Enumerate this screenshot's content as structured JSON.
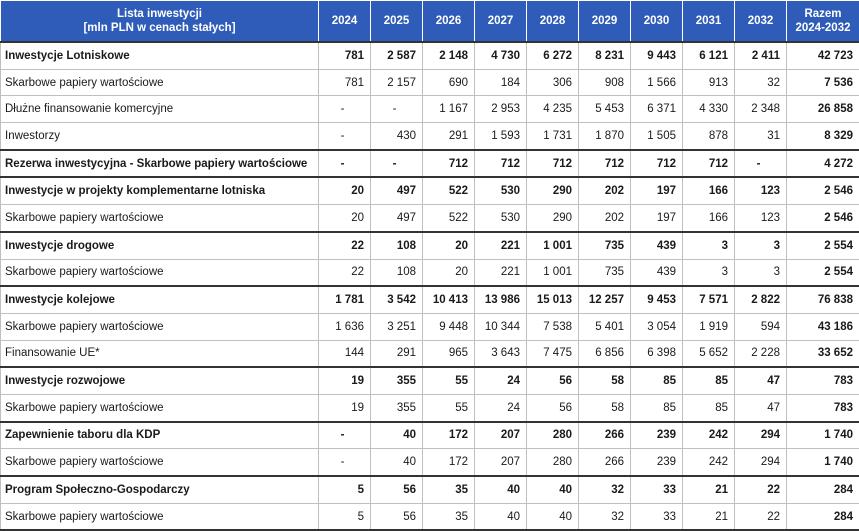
{
  "header": {
    "label_line1": "Lista inwestycji",
    "label_line2": "[mln PLN w cenach stałych]",
    "years": [
      "2024",
      "2025",
      "2026",
      "2027",
      "2028",
      "2029",
      "2030",
      "2031",
      "2032"
    ],
    "total_line1": "Razem",
    "total_line2": "2024-2032"
  },
  "rows": [
    {
      "label": "Inwestycje Lotniskowe",
      "bold": true,
      "values": [
        "781",
        "2 587",
        "2 148",
        "4 730",
        "6 272",
        "8 231",
        "9 443",
        "6 121",
        "2 411"
      ],
      "total": "42 723"
    },
    {
      "label": "Skarbowe papiery wartościowe",
      "bold": false,
      "values": [
        "781",
        "2 157",
        "690",
        "184",
        "306",
        "908",
        "1 566",
        "913",
        "32"
      ],
      "total": "7 536"
    },
    {
      "label": "Dłużne finansowanie komercyjne",
      "bold": false,
      "values": [
        "-",
        "-",
        "1 167",
        "2 953",
        "4 235",
        "5 453",
        "6 371",
        "4 330",
        "2 348"
      ],
      "total": "26 858"
    },
    {
      "label": "Inwestorzy",
      "bold": false,
      "values": [
        "-",
        "430",
        "291",
        "1 593",
        "1 731",
        "1 870",
        "1 505",
        "878",
        "31"
      ],
      "total": "8 329"
    },
    {
      "label": "Rezerwa inwestycyjna - Skarbowe papiery wartościowe",
      "bold": true,
      "values": [
        "-",
        "-",
        "712",
        "712",
        "712",
        "712",
        "712",
        "712",
        "-"
      ],
      "total": "4 272"
    },
    {
      "label": "Inwestycje w projekty komplementarne lotniska",
      "bold": true,
      "values": [
        "20",
        "497",
        "522",
        "530",
        "290",
        "202",
        "197",
        "166",
        "123"
      ],
      "total": "2 546"
    },
    {
      "label": "Skarbowe papiery wartościowe",
      "bold": false,
      "values": [
        "20",
        "497",
        "522",
        "530",
        "290",
        "202",
        "197",
        "166",
        "123"
      ],
      "total": "2 546"
    },
    {
      "label": "Inwestycje drogowe",
      "bold": true,
      "values": [
        "22",
        "108",
        "20",
        "221",
        "1 001",
        "735",
        "439",
        "3",
        "3"
      ],
      "total": "2 554"
    },
    {
      "label": "Skarbowe papiery wartościowe",
      "bold": false,
      "values": [
        "22",
        "108",
        "20",
        "221",
        "1 001",
        "735",
        "439",
        "3",
        "3"
      ],
      "total": "2 554"
    },
    {
      "label": "Inwestycje kolejowe",
      "bold": true,
      "values": [
        "1 781",
        "3 542",
        "10 413",
        "13 986",
        "15 013",
        "12 257",
        "9 453",
        "7 571",
        "2 822"
      ],
      "total": "76 838"
    },
    {
      "label": "Skarbowe papiery wartościowe",
      "bold": false,
      "values": [
        "1 636",
        "3 251",
        "9 448",
        "10 344",
        "7 538",
        "5 401",
        "3 054",
        "1 919",
        "594"
      ],
      "total": "43 186"
    },
    {
      "label": "Finansowanie UE*",
      "bold": false,
      "values": [
        "144",
        "291",
        "965",
        "3 643",
        "7 475",
        "6 856",
        "6 398",
        "5 652",
        "2 228"
      ],
      "total": "33 652"
    },
    {
      "label": "Inwestycje rozwojowe",
      "bold": true,
      "values": [
        "19",
        "355",
        "55",
        "24",
        "56",
        "58",
        "85",
        "85",
        "47"
      ],
      "total": "783"
    },
    {
      "label": "Skarbowe papiery wartościowe",
      "bold": false,
      "values": [
        "19",
        "355",
        "55",
        "24",
        "56",
        "58",
        "85",
        "85",
        "47"
      ],
      "total": "783"
    },
    {
      "label": "Zapewnienie taboru dla KDP",
      "bold": true,
      "values": [
        "-",
        "40",
        "172",
        "207",
        "280",
        "266",
        "239",
        "242",
        "294"
      ],
      "total": "1 740"
    },
    {
      "label": "Skarbowe papiery wartościowe",
      "bold": false,
      "values": [
        "-",
        "40",
        "172",
        "207",
        "280",
        "266",
        "239",
        "242",
        "294"
      ],
      "total": "1 740"
    },
    {
      "label": "Program Społeczno-Gospodarczy",
      "bold": true,
      "values": [
        "5",
        "56",
        "35",
        "40",
        "40",
        "32",
        "33",
        "21",
        "22"
      ],
      "total": "284"
    },
    {
      "label": "Skarbowe papiery wartościowe",
      "bold": false,
      "values": [
        "5",
        "56",
        "35",
        "40",
        "40",
        "32",
        "33",
        "21",
        "22"
      ],
      "total": "284"
    }
  ]
}
